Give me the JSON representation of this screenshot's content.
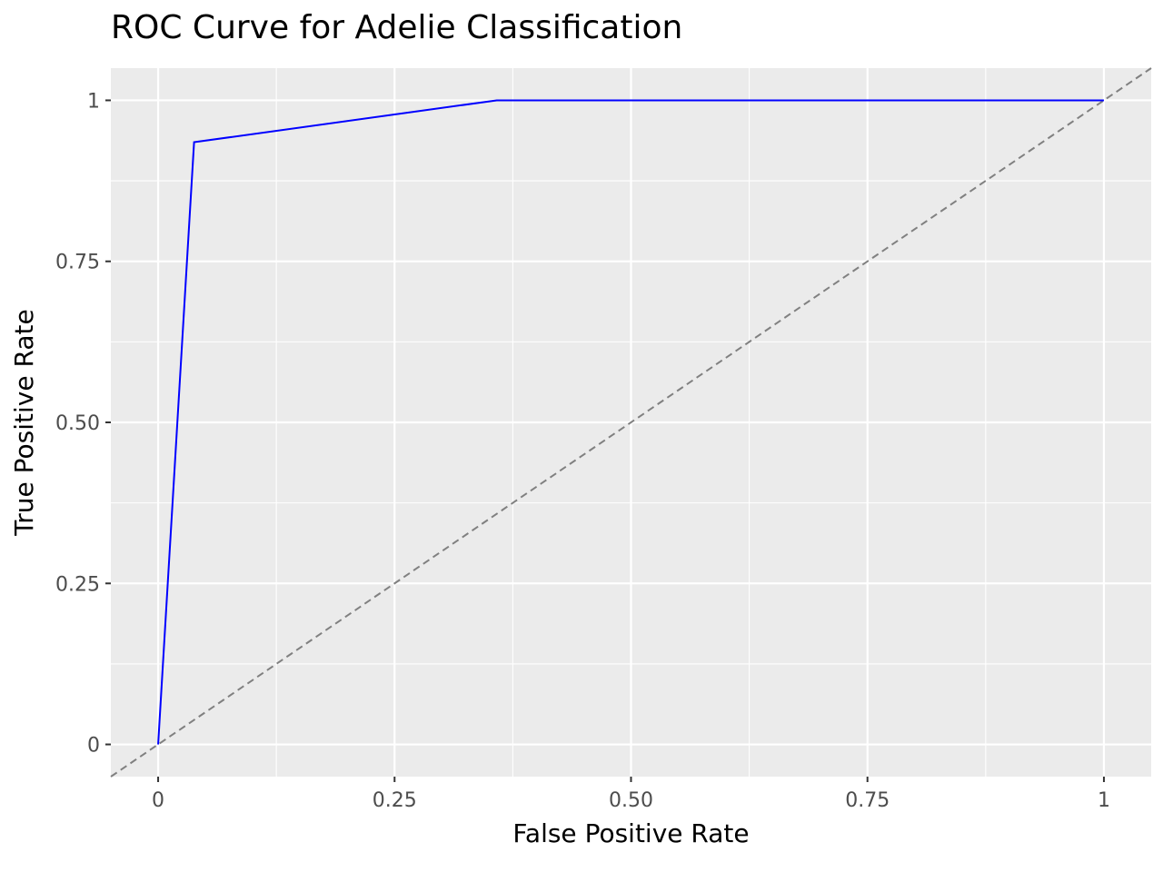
{
  "chart_data": {
    "type": "line",
    "title": "ROC Curve for Adelie Classification",
    "xlabel": "False Positive Rate",
    "ylabel": "True Positive Rate",
    "xlim": [
      -0.05,
      1.05
    ],
    "ylim": [
      -0.05,
      1.05
    ],
    "x_ticks": [
      0,
      0.25,
      0.5,
      0.75,
      1
    ],
    "x_tick_labels": [
      "0",
      "0.25",
      "0.50",
      "0.75",
      "1"
    ],
    "y_ticks": [
      0,
      0.25,
      0.5,
      0.75,
      1
    ],
    "y_tick_labels": [
      "0",
      "0.25",
      "0.50",
      "0.75",
      "1"
    ],
    "grid": true,
    "series": [
      {
        "color": "#0000ff",
        "line_style": "solid",
        "points": [
          {
            "x": 0.0,
            "y": 0.0
          },
          {
            "x": 0.038,
            "y": 0.935
          },
          {
            "x": 0.358,
            "y": 1.0
          },
          {
            "x": 1.0,
            "y": 1.0
          }
        ]
      }
    ],
    "reference_line": {
      "color": "#808080",
      "line_style": "dashed",
      "slope": 1,
      "intercept": 0
    },
    "colors": {
      "panel_background": "#ebebeb",
      "grid": "#ffffff",
      "tick_label": "#4d4d4d"
    }
  }
}
